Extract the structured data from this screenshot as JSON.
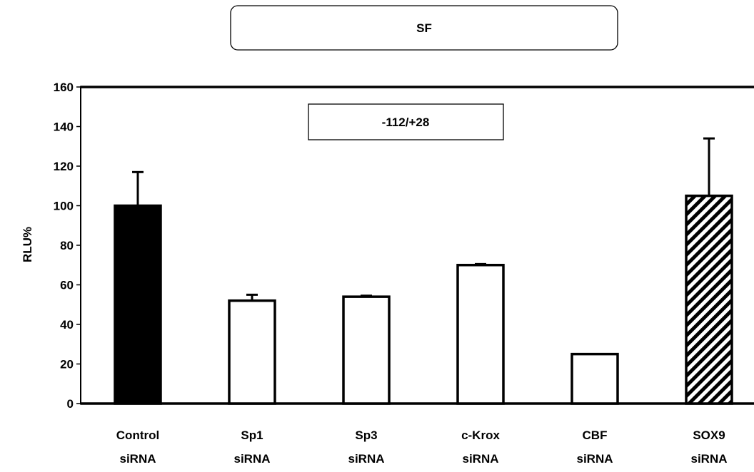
{
  "chart_data": {
    "type": "bar",
    "title": "SF",
    "annotation": "-112/+28",
    "ylabel": "RLU%",
    "xlabel": "",
    "ylim": [
      0,
      160
    ],
    "yticks": [
      "0",
      "20",
      "40",
      "60",
      "80",
      "100",
      "120",
      "140",
      "160"
    ],
    "categories": [
      [
        "Control",
        "siRNA"
      ],
      [
        "Sp1",
        "siRNA"
      ],
      [
        "Sp3",
        "siRNA"
      ],
      [
        "c-Krox",
        "siRNA"
      ],
      [
        "CBF",
        "siRNA"
      ],
      [
        "SOX9",
        "siRNA"
      ]
    ],
    "values": [
      100,
      52,
      54,
      70,
      25,
      105
    ],
    "errors": [
      17,
      3,
      0.5,
      0.5,
      0,
      29
    ],
    "fills": [
      "solid-black",
      "white",
      "white",
      "white",
      "white",
      "diagonal-hatch"
    ],
    "grid": false,
    "legend": "none"
  }
}
